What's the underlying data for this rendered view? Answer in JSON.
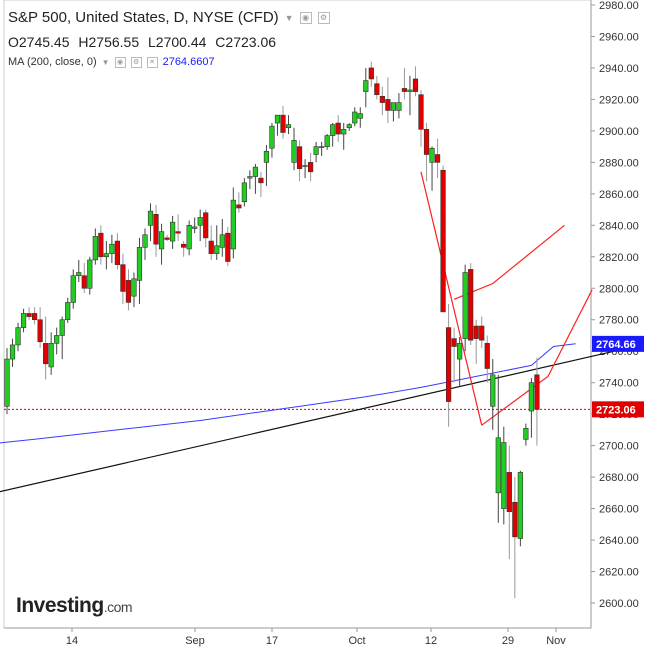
{
  "header": {
    "title": "S&P 500, United States, D, NYSE (CFD)",
    "ohlc": {
      "open": "O2745.45",
      "high": "H2756.55",
      "low": "L2700.44",
      "close": "C2723.06"
    },
    "ma_label": "MA (200, close, 0)",
    "ma_value": "2764.6607"
  },
  "logo": {
    "text": "Investing",
    "suffix": ".com"
  },
  "colors": {
    "up": "#22cc22",
    "down": "#e00000",
    "ma": "#3a3aff",
    "trend": "#111111",
    "pattern": "#ff2020",
    "price_label": "#e00000",
    "ma_label": "#1a1aff"
  },
  "chart_data": {
    "type": "candlestick",
    "y_ticks": [
      "2980.00",
      "2960.00",
      "2940.00",
      "2920.00",
      "2900.00",
      "2880.00",
      "2860.00",
      "2840.00",
      "2820.00",
      "2800.00",
      "2780.00",
      "2760.00",
      "2740.00",
      "2720.00",
      "2700.00",
      "2680.00",
      "2660.00",
      "2640.00",
      "2620.00",
      "2600.00"
    ],
    "ylim": [
      2592,
      2982
    ],
    "x_labels": [
      "14",
      "Sep",
      "17",
      "Oct",
      "12",
      "29",
      "Nov"
    ],
    "price_labels": {
      "ma": "2764.66",
      "close": "2723.06"
    },
    "candles": [
      [
        2725,
        2762,
        2720,
        2755
      ],
      [
        2755,
        2768,
        2750,
        2764
      ],
      [
        2764,
        2778,
        2760,
        2775
      ],
      [
        2775,
        2787,
        2772,
        2784
      ],
      [
        2784,
        2788,
        2780,
        2782
      ],
      [
        2784,
        2788,
        2777,
        2780
      ],
      [
        2780,
        2788,
        2762,
        2766
      ],
      [
        2765,
        2782,
        2742,
        2752
      ],
      [
        2750,
        2772,
        2745,
        2765
      ],
      [
        2765,
        2775,
        2758,
        2770
      ],
      [
        2770,
        2782,
        2755,
        2780
      ],
      [
        2780,
        2794,
        2778,
        2791
      ],
      [
        2791,
        2812,
        2787,
        2808
      ],
      [
        2808,
        2818,
        2804,
        2810
      ],
      [
        2808,
        2816,
        2797,
        2800
      ],
      [
        2800,
        2820,
        2796,
        2818
      ],
      [
        2818,
        2838,
        2815,
        2833
      ],
      [
        2835,
        2840,
        2815,
        2820
      ],
      [
        2820,
        2830,
        2812,
        2822
      ],
      [
        2822,
        2834,
        2816,
        2828
      ],
      [
        2830,
        2835,
        2812,
        2815
      ],
      [
        2815,
        2822,
        2790,
        2798
      ],
      [
        2805,
        2812,
        2786,
        2791
      ],
      [
        2795,
        2810,
        2788,
        2806
      ],
      [
        2805,
        2832,
        2790,
        2826
      ],
      [
        2826,
        2838,
        2818,
        2834
      ],
      [
        2840,
        2854,
        2830,
        2849
      ],
      [
        2847,
        2853,
        2820,
        2828
      ],
      [
        2825,
        2841,
        2815,
        2836
      ],
      [
        2832,
        2834,
        2830,
        2831
      ],
      [
        2830,
        2846,
        2825,
        2842
      ],
      [
        2836,
        2847,
        2830,
        2835
      ],
      [
        2828,
        2830,
        2820,
        2826
      ],
      [
        2825,
        2843,
        2821,
        2840
      ],
      [
        2838,
        2845,
        2835,
        2839
      ],
      [
        2840,
        2850,
        2830,
        2845
      ],
      [
        2848,
        2850,
        2826,
        2832
      ],
      [
        2830,
        2840,
        2818,
        2822
      ],
      [
        2822,
        2840,
        2818,
        2827
      ],
      [
        2826,
        2844,
        2820,
        2834
      ],
      [
        2835,
        2839,
        2814,
        2817
      ],
      [
        2825,
        2864,
        2819,
        2856
      ],
      [
        2853,
        2861,
        2848,
        2851
      ],
      [
        2855,
        2870,
        2852,
        2867
      ],
      [
        2870,
        2875,
        2863,
        2871
      ],
      [
        2871,
        2879,
        2860,
        2877
      ],
      [
        2870,
        2874,
        2858,
        2867
      ],
      [
        2880,
        2891,
        2865,
        2887
      ],
      [
        2889,
        2905,
        2883,
        2903
      ],
      [
        2905,
        2910,
        2897,
        2910
      ],
      [
        2910,
        2916,
        2895,
        2899
      ],
      [
        2902,
        2910,
        2898,
        2904
      ],
      [
        2880,
        2902,
        2875,
        2894
      ],
      [
        2890,
        2894,
        2868,
        2876
      ],
      [
        2878,
        2882,
        2870,
        2878
      ],
      [
        2880,
        2886,
        2868,
        2874
      ],
      [
        2885,
        2893,
        2880,
        2890
      ],
      [
        2890,
        2893,
        2884,
        2890
      ],
      [
        2890,
        2898,
        2888,
        2897
      ],
      [
        2897,
        2905,
        2890,
        2904
      ],
      [
        2905,
        2910,
        2893,
        2898
      ],
      [
        2898,
        2905,
        2888,
        2901
      ],
      [
        2902,
        2905,
        2900,
        2904
      ],
      [
        2905,
        2915,
        2903,
        2912
      ],
      [
        2908,
        2915,
        2902,
        2911
      ],
      [
        2925,
        2940,
        2915,
        2932
      ],
      [
        2940,
        2944,
        2928,
        2933
      ],
      [
        2930,
        2935,
        2920,
        2923
      ],
      [
        2922,
        2928,
        2910,
        2918
      ],
      [
        2920,
        2934,
        2905,
        2913
      ],
      [
        2913,
        2918,
        2906,
        2918
      ],
      [
        2913,
        2924,
        2908,
        2918
      ],
      [
        2927,
        2940,
        2920,
        2925
      ],
      [
        2925,
        2935,
        2910,
        2926
      ],
      [
        2933,
        2941,
        2922,
        2925
      ],
      [
        2923,
        2926,
        2890,
        2901
      ],
      [
        2901,
        2905,
        2868,
        2885
      ],
      [
        2880,
        2890,
        2862,
        2889
      ],
      [
        2885,
        2895,
        2870,
        2880
      ],
      [
        2875,
        2878,
        2785,
        2785
      ],
      [
        2775,
        2790,
        2712,
        2728
      ],
      [
        2768,
        2775,
        2740,
        2763
      ],
      [
        2755,
        2769,
        2738,
        2765
      ],
      [
        2768,
        2815,
        2760,
        2810
      ],
      [
        2812,
        2816,
        2764,
        2767
      ],
      [
        2776,
        2780,
        2752,
        2768
      ],
      [
        2776,
        2782,
        2762,
        2767
      ],
      [
        2765,
        2770,
        2740,
        2749
      ],
      [
        2725,
        2755,
        2710,
        2745
      ],
      [
        2670,
        2745,
        2651,
        2705
      ],
      [
        2660,
        2712,
        2650,
        2702
      ],
      [
        2683,
        2700,
        2628,
        2658
      ],
      [
        2664,
        2680,
        2603,
        2642
      ],
      [
        2641,
        2684,
        2636,
        2683
      ],
      [
        2704,
        2714,
        2700,
        2711
      ],
      [
        2722,
        2743,
        2705,
        2740
      ],
      [
        2745,
        2756,
        2700,
        2723
      ]
    ],
    "ma_points": [
      [
        -6,
        2700
      ],
      [
        5,
        2704
      ],
      [
        15,
        2708
      ],
      [
        25,
        2712
      ],
      [
        35,
        2716
      ],
      [
        45,
        2721
      ],
      [
        55,
        2726
      ],
      [
        65,
        2731
      ],
      [
        75,
        2737
      ],
      [
        85,
        2744
      ],
      [
        95,
        2751
      ],
      [
        99,
        2763
      ],
      [
        103,
        2764.7
      ]
    ],
    "trendline": [
      [
        -6,
        2667
      ],
      [
        110,
        2760
      ]
    ],
    "pattern_lines": [
      [
        [
          75,
          2874
        ],
        [
          86,
          2713
        ]
      ],
      [
        [
          86,
          2713
        ],
        [
          98,
          2744
        ],
        [
          106,
          2799
        ]
      ],
      [
        [
          81,
          2793
        ],
        [
          88,
          2803
        ],
        [
          101,
          2840
        ]
      ]
    ]
  }
}
